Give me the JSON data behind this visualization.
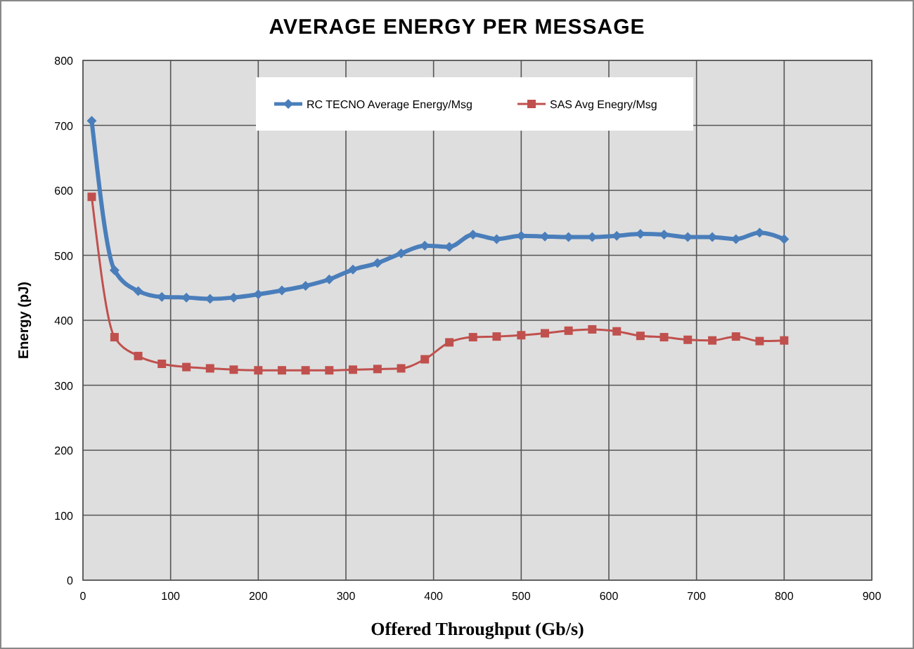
{
  "chart_data": {
    "type": "line",
    "title": "AVERAGE ENERGY PER MESSAGE",
    "xlabel": "Offered Throughput (Gb/s)",
    "ylabel": "Energy (pJ)",
    "x": [
      10,
      36,
      63,
      90,
      118,
      145,
      172,
      200,
      227,
      254,
      281,
      308,
      336,
      363,
      390,
      418,
      445,
      472,
      500,
      527,
      554,
      581,
      609,
      636,
      663,
      690,
      718,
      745,
      772,
      800
    ],
    "series": [
      {
        "name": "RC TECNO Average Energy/Msg",
        "color": "#4a7ebb",
        "marker": "diamond",
        "values": [
          707,
          477,
          445,
          436,
          435,
          433,
          435,
          440,
          446,
          453,
          463,
          478,
          488,
          503,
          515,
          513,
          532,
          525,
          530,
          529,
          528,
          528,
          530,
          533,
          532,
          528,
          528,
          525,
          535,
          525
        ]
      },
      {
        "name": "SAS Avg Enegry/Msg",
        "color": "#c0504d",
        "marker": "square",
        "values": [
          590,
          374,
          345,
          333,
          328,
          326,
          324,
          323,
          323,
          323,
          323,
          324,
          325,
          326,
          340,
          366,
          374,
          375,
          377,
          380,
          384,
          386,
          383,
          376,
          374,
          370,
          369,
          375,
          368,
          369
        ]
      }
    ],
    "xlim": [
      0,
      900
    ],
    "xticks": [
      0,
      100,
      200,
      300,
      400,
      500,
      600,
      700,
      800,
      900
    ],
    "ylim": [
      0,
      800
    ],
    "yticks": [
      0,
      100,
      200,
      300,
      400,
      500,
      600,
      700,
      800
    ],
    "grid": true,
    "legend": "top",
    "line_style": "solid"
  }
}
